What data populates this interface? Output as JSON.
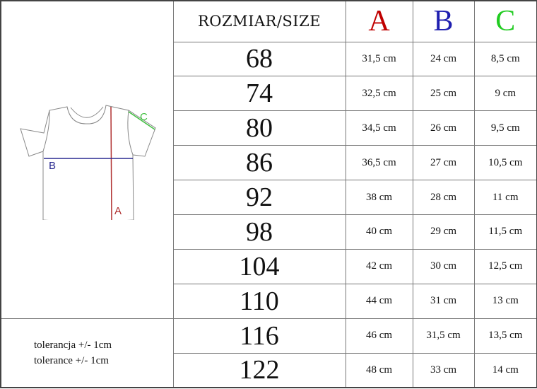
{
  "header": {
    "size_label": "ROZMIAR/SIZE",
    "columns": [
      {
        "label": "A",
        "color": "#c00000"
      },
      {
        "label": "B",
        "color": "#1f1fb0"
      },
      {
        "label": "C",
        "color": "#22cc22"
      }
    ]
  },
  "diagram": {
    "labels": {
      "a": "A",
      "b": "B",
      "c": "C"
    },
    "colors": {
      "a": "#b03030",
      "b": "#2a2a90",
      "c": "#40c040"
    }
  },
  "rows": [
    {
      "size": "68",
      "a": "31,5 cm",
      "b": "24 cm",
      "c": "8,5 cm"
    },
    {
      "size": "74",
      "a": "32,5 cm",
      "b": "25 cm",
      "c": "9 cm"
    },
    {
      "size": "80",
      "a": "34,5 cm",
      "b": "26 cm",
      "c": "9,5 cm"
    },
    {
      "size": "86",
      "a": "36,5 cm",
      "b": "27 cm",
      "c": "10,5 cm"
    },
    {
      "size": "92",
      "a": "38 cm",
      "b": "28 cm",
      "c": "11 cm"
    },
    {
      "size": "98",
      "a": "40 cm",
      "b": "29 cm",
      "c": "11,5 cm"
    },
    {
      "size": "104",
      "a": "42 cm",
      "b": "30 cm",
      "c": "12,5 cm"
    },
    {
      "size": "110",
      "a": "44 cm",
      "b": "31 cm",
      "c": "13 cm"
    },
    {
      "size": "116",
      "a": "46 cm",
      "b": "31,5 cm",
      "c": "13,5 cm"
    },
    {
      "size": "122",
      "a": "48 cm",
      "b": "33 cm",
      "c": "14 cm"
    }
  ],
  "tolerance": {
    "pl": "tolerancja +/- 1cm",
    "en": "tolerance +/- 1cm"
  }
}
